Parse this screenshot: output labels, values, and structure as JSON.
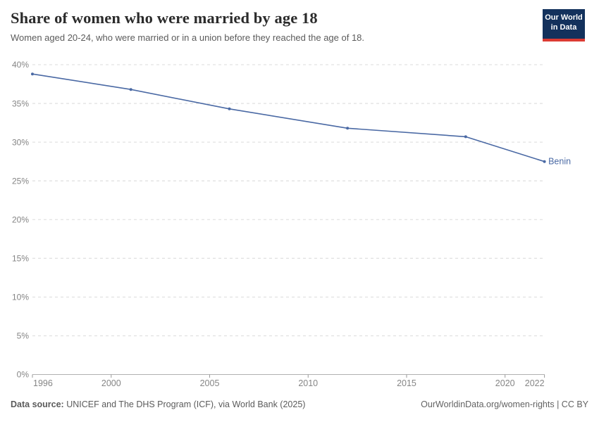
{
  "header": {
    "title": "Share of women who were married by age 18",
    "subtitle": "Women aged 20-24, who were married or in a union before they reached the age of 18.",
    "logo": {
      "line1": "Our World",
      "line2": "in Data"
    }
  },
  "chart_data": {
    "type": "line",
    "title": "Share of women who were married by age 18",
    "xlabel": "",
    "ylabel": "",
    "xlim": [
      1996,
      2022
    ],
    "ylim": [
      0,
      40
    ],
    "x_ticks": [
      1996,
      2000,
      2005,
      2010,
      2015,
      2020,
      2022
    ],
    "y_ticks": [
      0,
      5,
      10,
      15,
      20,
      25,
      30,
      35,
      40
    ],
    "y_tick_suffix": "%",
    "grid": "horizontal-dashed",
    "legend_position": "end-of-line-label",
    "series": [
      {
        "name": "Benin",
        "color": "#4a69a4",
        "x": [
          1996,
          2001,
          2006,
          2012,
          2018,
          2022
        ],
        "values": [
          38.8,
          36.8,
          34.3,
          31.8,
          30.7,
          27.5
        ]
      }
    ]
  },
  "footer": {
    "source_label": "Data source:",
    "source_text": " UNICEF and The DHS Program (ICF), via World Bank (2025)",
    "link_text": "OurWorldinData.org/women-rights | CC BY"
  },
  "colors": {
    "line": "#4a69a4",
    "grid": "#e2e2e2",
    "axis_line": "#b0b0b0",
    "tick": "#999999",
    "axis_text": "#858585",
    "title_text": "#2b2b2b",
    "logo_bg": "#13315c",
    "logo_bar": "#dc3b33"
  }
}
